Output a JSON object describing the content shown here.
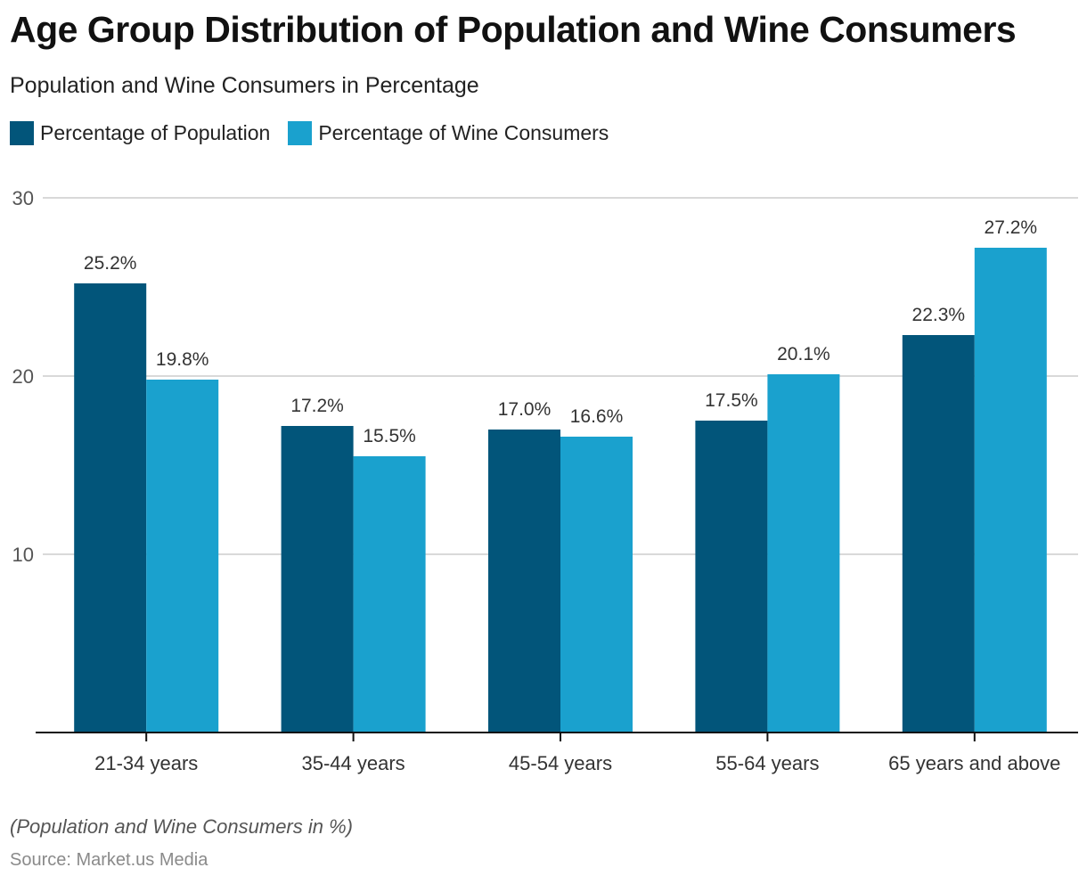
{
  "chart_data": {
    "type": "bar",
    "title": "Age Group Distribution of Population and Wine Consumers",
    "subtitle": "Population and Wine Consumers in Percentage",
    "xlabel": "",
    "ylabel": "",
    "ylim": [
      0,
      30
    ],
    "yticks": [
      10,
      20,
      30
    ],
    "grid": true,
    "legend_position": "top-left",
    "categories": [
      "21-34 years",
      "35-44 years",
      "45-54 years",
      "55-64 years",
      "65 years and above"
    ],
    "series": [
      {
        "name": "Percentage of Population",
        "color": "#02557a",
        "values": [
          25.2,
          17.2,
          17.0,
          17.5,
          22.3
        ],
        "labels": [
          "25.2%",
          "17.2%",
          "17.0%",
          "17.5%",
          "22.3%"
        ]
      },
      {
        "name": "Percentage of Wine Consumers",
        "color": "#1aa1ce",
        "values": [
          19.8,
          15.5,
          16.6,
          20.1,
          27.2
        ],
        "labels": [
          "19.8%",
          "15.5%",
          "16.6%",
          "20.1%",
          "27.2%"
        ]
      }
    ],
    "footnote": "(Population and Wine Consumers in %)",
    "source": "Source: Market.us Media"
  }
}
